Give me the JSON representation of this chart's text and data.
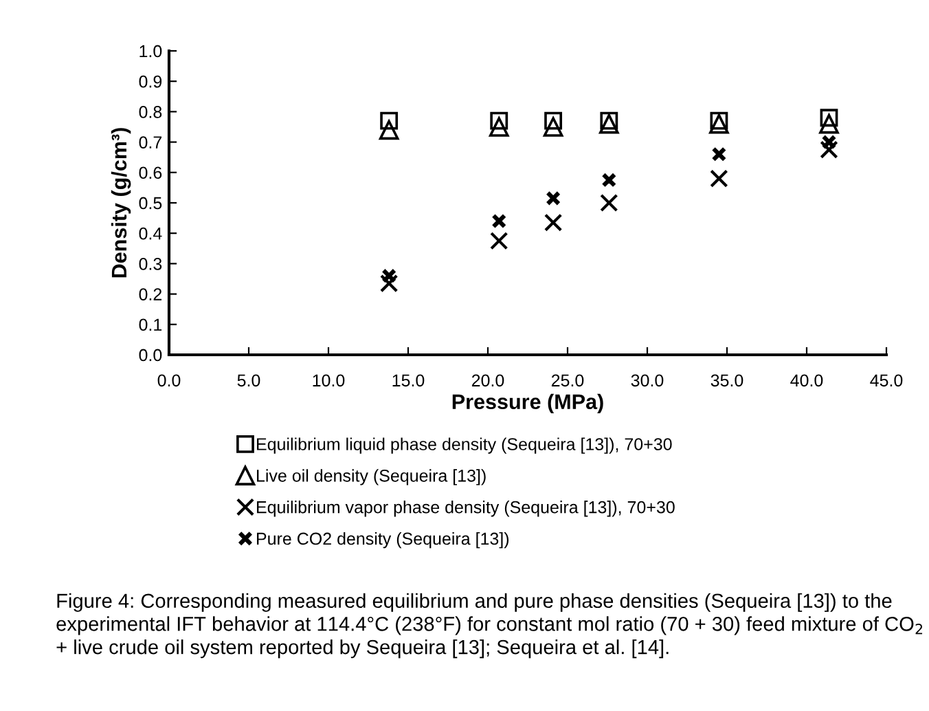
{
  "chart_data": {
    "type": "scatter",
    "xlabel": "Pressure (MPa)",
    "ylabel": "Density (g/cm³)",
    "x": [
      13.8,
      20.7,
      24.1,
      27.6,
      34.5,
      41.4
    ],
    "series": [
      {
        "name": "Equilibrium liquid phase density (Sequeira [13]), 70+30",
        "color": "#000000",
        "marker": "square",
        "values": [
          0.77,
          0.77,
          0.77,
          0.77,
          0.77,
          0.78
        ]
      },
      {
        "name": "Live oil density (Sequeira [13])",
        "color": "#000000",
        "marker": "triangle",
        "values": [
          0.74,
          0.75,
          0.75,
          0.76,
          0.76,
          0.76
        ]
      },
      {
        "name": "Equilibrium vapor phase density (Sequeira [13]), 70+30",
        "color": "#000000",
        "marker": "cross",
        "values": [
          0.235,
          0.375,
          0.435,
          0.5,
          0.58,
          0.675
        ]
      },
      {
        "name": "Pure CO2 density (Sequeira [13])",
        "color": "#000000",
        "marker": "star",
        "values": [
          0.26,
          0.44,
          0.515,
          0.575,
          0.66,
          0.7
        ]
      }
    ],
    "xlim": [
      0,
      45
    ],
    "xticks": [
      {
        "value": 0,
        "label": "0.0"
      },
      {
        "value": 5,
        "label": "5.0"
      },
      {
        "value": 10,
        "label": "10.0"
      },
      {
        "value": 15,
        "label": "15.0"
      },
      {
        "value": 20,
        "label": "20.0"
      },
      {
        "value": 25,
        "label": "25.0"
      },
      {
        "value": 30,
        "label": "30.0"
      },
      {
        "value": 35,
        "label": "35.0"
      },
      {
        "value": 40,
        "label": "40.0"
      },
      {
        "value": 45,
        "label": "45.0"
      }
    ],
    "ylim": [
      0,
      1
    ],
    "yticks": [
      {
        "value": 0,
        "label": "0.0"
      },
      {
        "value": 0.1,
        "label": "0.1"
      },
      {
        "value": 0.2,
        "label": "0.2"
      },
      {
        "value": 0.3,
        "label": "0.3"
      },
      {
        "value": 0.4,
        "label": "0.4"
      },
      {
        "value": 0.5,
        "label": "0.5"
      },
      {
        "value": 0.6,
        "label": "0.6"
      },
      {
        "value": 0.7,
        "label": "0.7"
      },
      {
        "value": 0.8,
        "label": "0.8"
      },
      {
        "value": 0.9,
        "label": "0.9"
      },
      {
        "value": 1,
        "label": "1.0"
      }
    ],
    "grid": false,
    "legend": "bottom",
    "annotations": [
      "Figure 4: Corresponding measured equilibrium and pure phase densities (Sequeira [13]) to the experimental IFT behavior at 114.4°C (238°F) for constant mol ratio (70 + 30) feed mixture of CO$_{2}$ + live crude oil system reported by Sequeira [13]; Sequeira et al. [14]."
    ]
  }
}
